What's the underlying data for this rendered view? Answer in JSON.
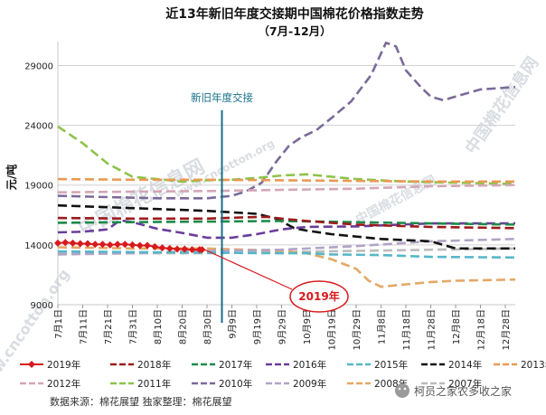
{
  "page": {
    "source_note": "数据来源：棉花展望  独家整理：棉花展望",
    "watermarks": [
      "中国棉花信息网",
      "www.cncotton.org",
      "中国棉花信息网",
      "www.cncotton.org",
      "中国棉花信息网"
    ],
    "wechat_badge": "柯员之家农多收之家"
  },
  "chart_data": {
    "type": "line",
    "title": "近13年新旧年度交接期中国棉花价格指数走势",
    "subtitle": "（7月-12月）",
    "ylabel": "元/吨",
    "xlabel": "",
    "ylim": [
      9000,
      31000
    ],
    "y_ticks": [
      9000,
      14000,
      19000,
      24000,
      29000
    ],
    "grid": "horizontal",
    "legend_position": "bottom",
    "x_ticks": [
      "7月1日",
      "7月11日",
      "7月21日",
      "7月31日",
      "8月10日",
      "8月20日",
      "8月30日",
      "9月9日",
      "9月19日",
      "9月29日",
      "10月9日",
      "10月19日",
      "10月29日",
      "11月8日",
      "11月18日",
      "11月28日",
      "12月8日",
      "12月18日",
      "12月28日"
    ],
    "x_range_days": [
      0,
      184
    ],
    "annotations": [
      {
        "text": "新旧年度交接",
        "x_day": 66,
        "type": "vertical-line"
      },
      {
        "text": "2019年",
        "type": "callout",
        "target_series": "2019年",
        "target_day": 58,
        "target_value": 13700
      }
    ],
    "series": [
      {
        "name": "2019年",
        "color": "#d7191c",
        "style": "solid-diamond",
        "points": [
          [
            0,
            14150
          ],
          [
            3,
            14200
          ],
          [
            6,
            14150
          ],
          [
            9,
            14100
          ],
          [
            12,
            14100
          ],
          [
            15,
            14050
          ],
          [
            18,
            14050
          ],
          [
            21,
            14000
          ],
          [
            24,
            14050
          ],
          [
            27,
            14050
          ],
          [
            30,
            14000
          ],
          [
            33,
            13950
          ],
          [
            36,
            13950
          ],
          [
            39,
            13850
          ],
          [
            42,
            13750
          ],
          [
            45,
            13700
          ],
          [
            48,
            13650
          ],
          [
            51,
            13650
          ],
          [
            54,
            13600
          ],
          [
            57,
            13600
          ],
          [
            58,
            13600
          ]
        ]
      },
      {
        "name": "2018年",
        "color": "#9b1b1b",
        "style": "dashed",
        "points": [
          [
            0,
            16250
          ],
          [
            30,
            16200
          ],
          [
            60,
            16200
          ],
          [
            75,
            16300
          ],
          [
            84,
            16350
          ],
          [
            90,
            16200
          ],
          [
            100,
            16000
          ],
          [
            120,
            15700
          ],
          [
            150,
            15500
          ],
          [
            184,
            15400
          ]
        ]
      },
      {
        "name": "2017年",
        "color": "#1e8a4a",
        "style": "dashed",
        "points": [
          [
            0,
            15850
          ],
          [
            30,
            15900
          ],
          [
            60,
            15950
          ],
          [
            90,
            16000
          ],
          [
            120,
            15900
          ],
          [
            150,
            15800
          ],
          [
            184,
            15700
          ]
        ]
      },
      {
        "name": "2016年",
        "color": "#6a3d9a",
        "style": "dashed",
        "points": [
          [
            0,
            15050
          ],
          [
            10,
            15100
          ],
          [
            20,
            15300
          ],
          [
            25,
            16050
          ],
          [
            30,
            15900
          ],
          [
            40,
            15350
          ],
          [
            50,
            15000
          ],
          [
            60,
            14600
          ],
          [
            70,
            14600
          ],
          [
            80,
            14900
          ],
          [
            90,
            15300
          ],
          [
            100,
            15500
          ],
          [
            120,
            15550
          ],
          [
            150,
            15800
          ],
          [
            184,
            15800
          ]
        ]
      },
      {
        "name": "2015年",
        "color": "#56b7c9",
        "style": "dashed",
        "points": [
          [
            0,
            13450
          ],
          [
            30,
            13400
          ],
          [
            60,
            13350
          ],
          [
            90,
            13300
          ],
          [
            100,
            13300
          ],
          [
            110,
            13200
          ],
          [
            130,
            13150
          ],
          [
            150,
            13000
          ],
          [
            184,
            12950
          ]
        ]
      },
      {
        "name": "2014年",
        "color": "#111111",
        "style": "dashed",
        "points": [
          [
            0,
            17300
          ],
          [
            20,
            17150
          ],
          [
            40,
            17000
          ],
          [
            60,
            16850
          ],
          [
            80,
            16600
          ],
          [
            88,
            16200
          ],
          [
            95,
            15400
          ],
          [
            100,
            15200
          ],
          [
            110,
            14900
          ],
          [
            130,
            14500
          ],
          [
            150,
            14300
          ],
          [
            160,
            13700
          ],
          [
            184,
            13700
          ]
        ]
      },
      {
        "name": "2013年",
        "color": "#e89a54",
        "style": "dashed",
        "points": [
          [
            0,
            19500
          ],
          [
            30,
            19450
          ],
          [
            60,
            19450
          ],
          [
            90,
            19400
          ],
          [
            120,
            19350
          ],
          [
            150,
            19300
          ],
          [
            184,
            19300
          ]
        ]
      },
      {
        "name": "2012年",
        "color": "#d4a6b6",
        "style": "dashed",
        "points": [
          [
            0,
            18400
          ],
          [
            30,
            18450
          ],
          [
            60,
            18500
          ],
          [
            90,
            18600
          ],
          [
            120,
            18700
          ],
          [
            150,
            18900
          ],
          [
            184,
            19000
          ]
        ]
      },
      {
        "name": "2011年",
        "color": "#8cc34a",
        "style": "dashed",
        "points": [
          [
            0,
            23900
          ],
          [
            10,
            22500
          ],
          [
            20,
            20800
          ],
          [
            30,
            19700
          ],
          [
            40,
            19500
          ],
          [
            50,
            19300
          ],
          [
            60,
            19400
          ],
          [
            70,
            19450
          ],
          [
            80,
            19600
          ],
          [
            90,
            19800
          ],
          [
            100,
            19900
          ],
          [
            120,
            19500
          ],
          [
            140,
            19300
          ],
          [
            160,
            19200
          ],
          [
            184,
            19100
          ]
        ]
      },
      {
        "name": "2010年",
        "color": "#7b6a9a",
        "style": "dashed",
        "points": [
          [
            0,
            18100
          ],
          [
            20,
            18000
          ],
          [
            40,
            17900
          ],
          [
            60,
            17900
          ],
          [
            70,
            18100
          ],
          [
            76,
            18500
          ],
          [
            82,
            19200
          ],
          [
            88,
            21000
          ],
          [
            93,
            22300
          ],
          [
            98,
            23000
          ],
          [
            104,
            23600
          ],
          [
            110,
            24600
          ],
          [
            118,
            26000
          ],
          [
            126,
            28200
          ],
          [
            132,
            30900
          ],
          [
            136,
            30600
          ],
          [
            140,
            28600
          ],
          [
            146,
            27200
          ],
          [
            150,
            26400
          ],
          [
            155,
            26100
          ],
          [
            160,
            26400
          ],
          [
            170,
            27000
          ],
          [
            184,
            27200
          ]
        ]
      },
      {
        "name": "2009年",
        "color": "#b1a3c5",
        "style": "dashed",
        "points": [
          [
            0,
            13200
          ],
          [
            30,
            13300
          ],
          [
            60,
            13500
          ],
          [
            90,
            13600
          ],
          [
            120,
            13900
          ],
          [
            150,
            14300
          ],
          [
            184,
            14500
          ]
        ]
      },
      {
        "name": "2008年",
        "color": "#e4a865",
        "style": "dashed",
        "points": [
          [
            0,
            13800
          ],
          [
            30,
            13700
          ],
          [
            60,
            13700
          ],
          [
            90,
            13500
          ],
          [
            100,
            13300
          ],
          [
            110,
            12800
          ],
          [
            120,
            12000
          ],
          [
            125,
            11000
          ],
          [
            130,
            10500
          ],
          [
            140,
            10700
          ],
          [
            150,
            10900
          ],
          [
            160,
            11000
          ],
          [
            184,
            11100
          ]
        ]
      },
      {
        "name": "2007年",
        "color": "#bbbbbb",
        "style": "dashed",
        "points": [
          [
            0,
            13300
          ],
          [
            30,
            13300
          ],
          [
            60,
            13300
          ],
          [
            90,
            13400
          ],
          [
            120,
            13500
          ],
          [
            150,
            13600
          ],
          [
            184,
            13700
          ]
        ]
      }
    ]
  }
}
